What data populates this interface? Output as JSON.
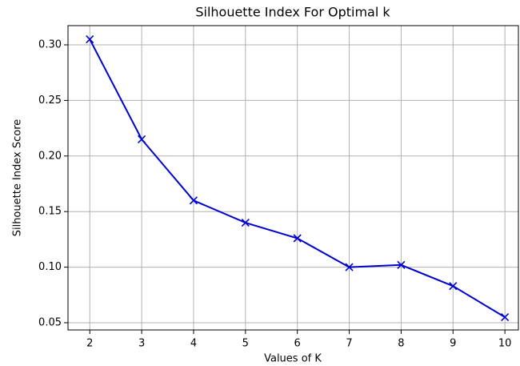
{
  "chart_data": {
    "type": "line",
    "title": "Silhouette Index For Optimal k",
    "x_label": "Values of K",
    "y_label": "Silhouette Index Score",
    "x": [
      2,
      3,
      4,
      5,
      6,
      7,
      8,
      9,
      10
    ],
    "series": [
      {
        "color": "#0000cd",
        "marker": "x",
        "values": [
          0.305,
          0.215,
          0.16,
          0.14,
          0.126,
          0.1,
          0.102,
          0.083,
          0.055
        ]
      }
    ],
    "xlim": [
      1.58,
      10.26
    ],
    "xticks": [
      2,
      3,
      4,
      5,
      6,
      7,
      8,
      9,
      10
    ],
    "ylim": [
      0.0435,
      0.3173
    ],
    "yticks": [
      0.05,
      {
        "value": 0.1,
        "label": "0.10"
      },
      0.15,
      {
        "value": 0.2,
        "label": "0.20"
      },
      0.25,
      {
        "value": 0.3,
        "label": "0.30"
      }
    ],
    "grid": true
  }
}
